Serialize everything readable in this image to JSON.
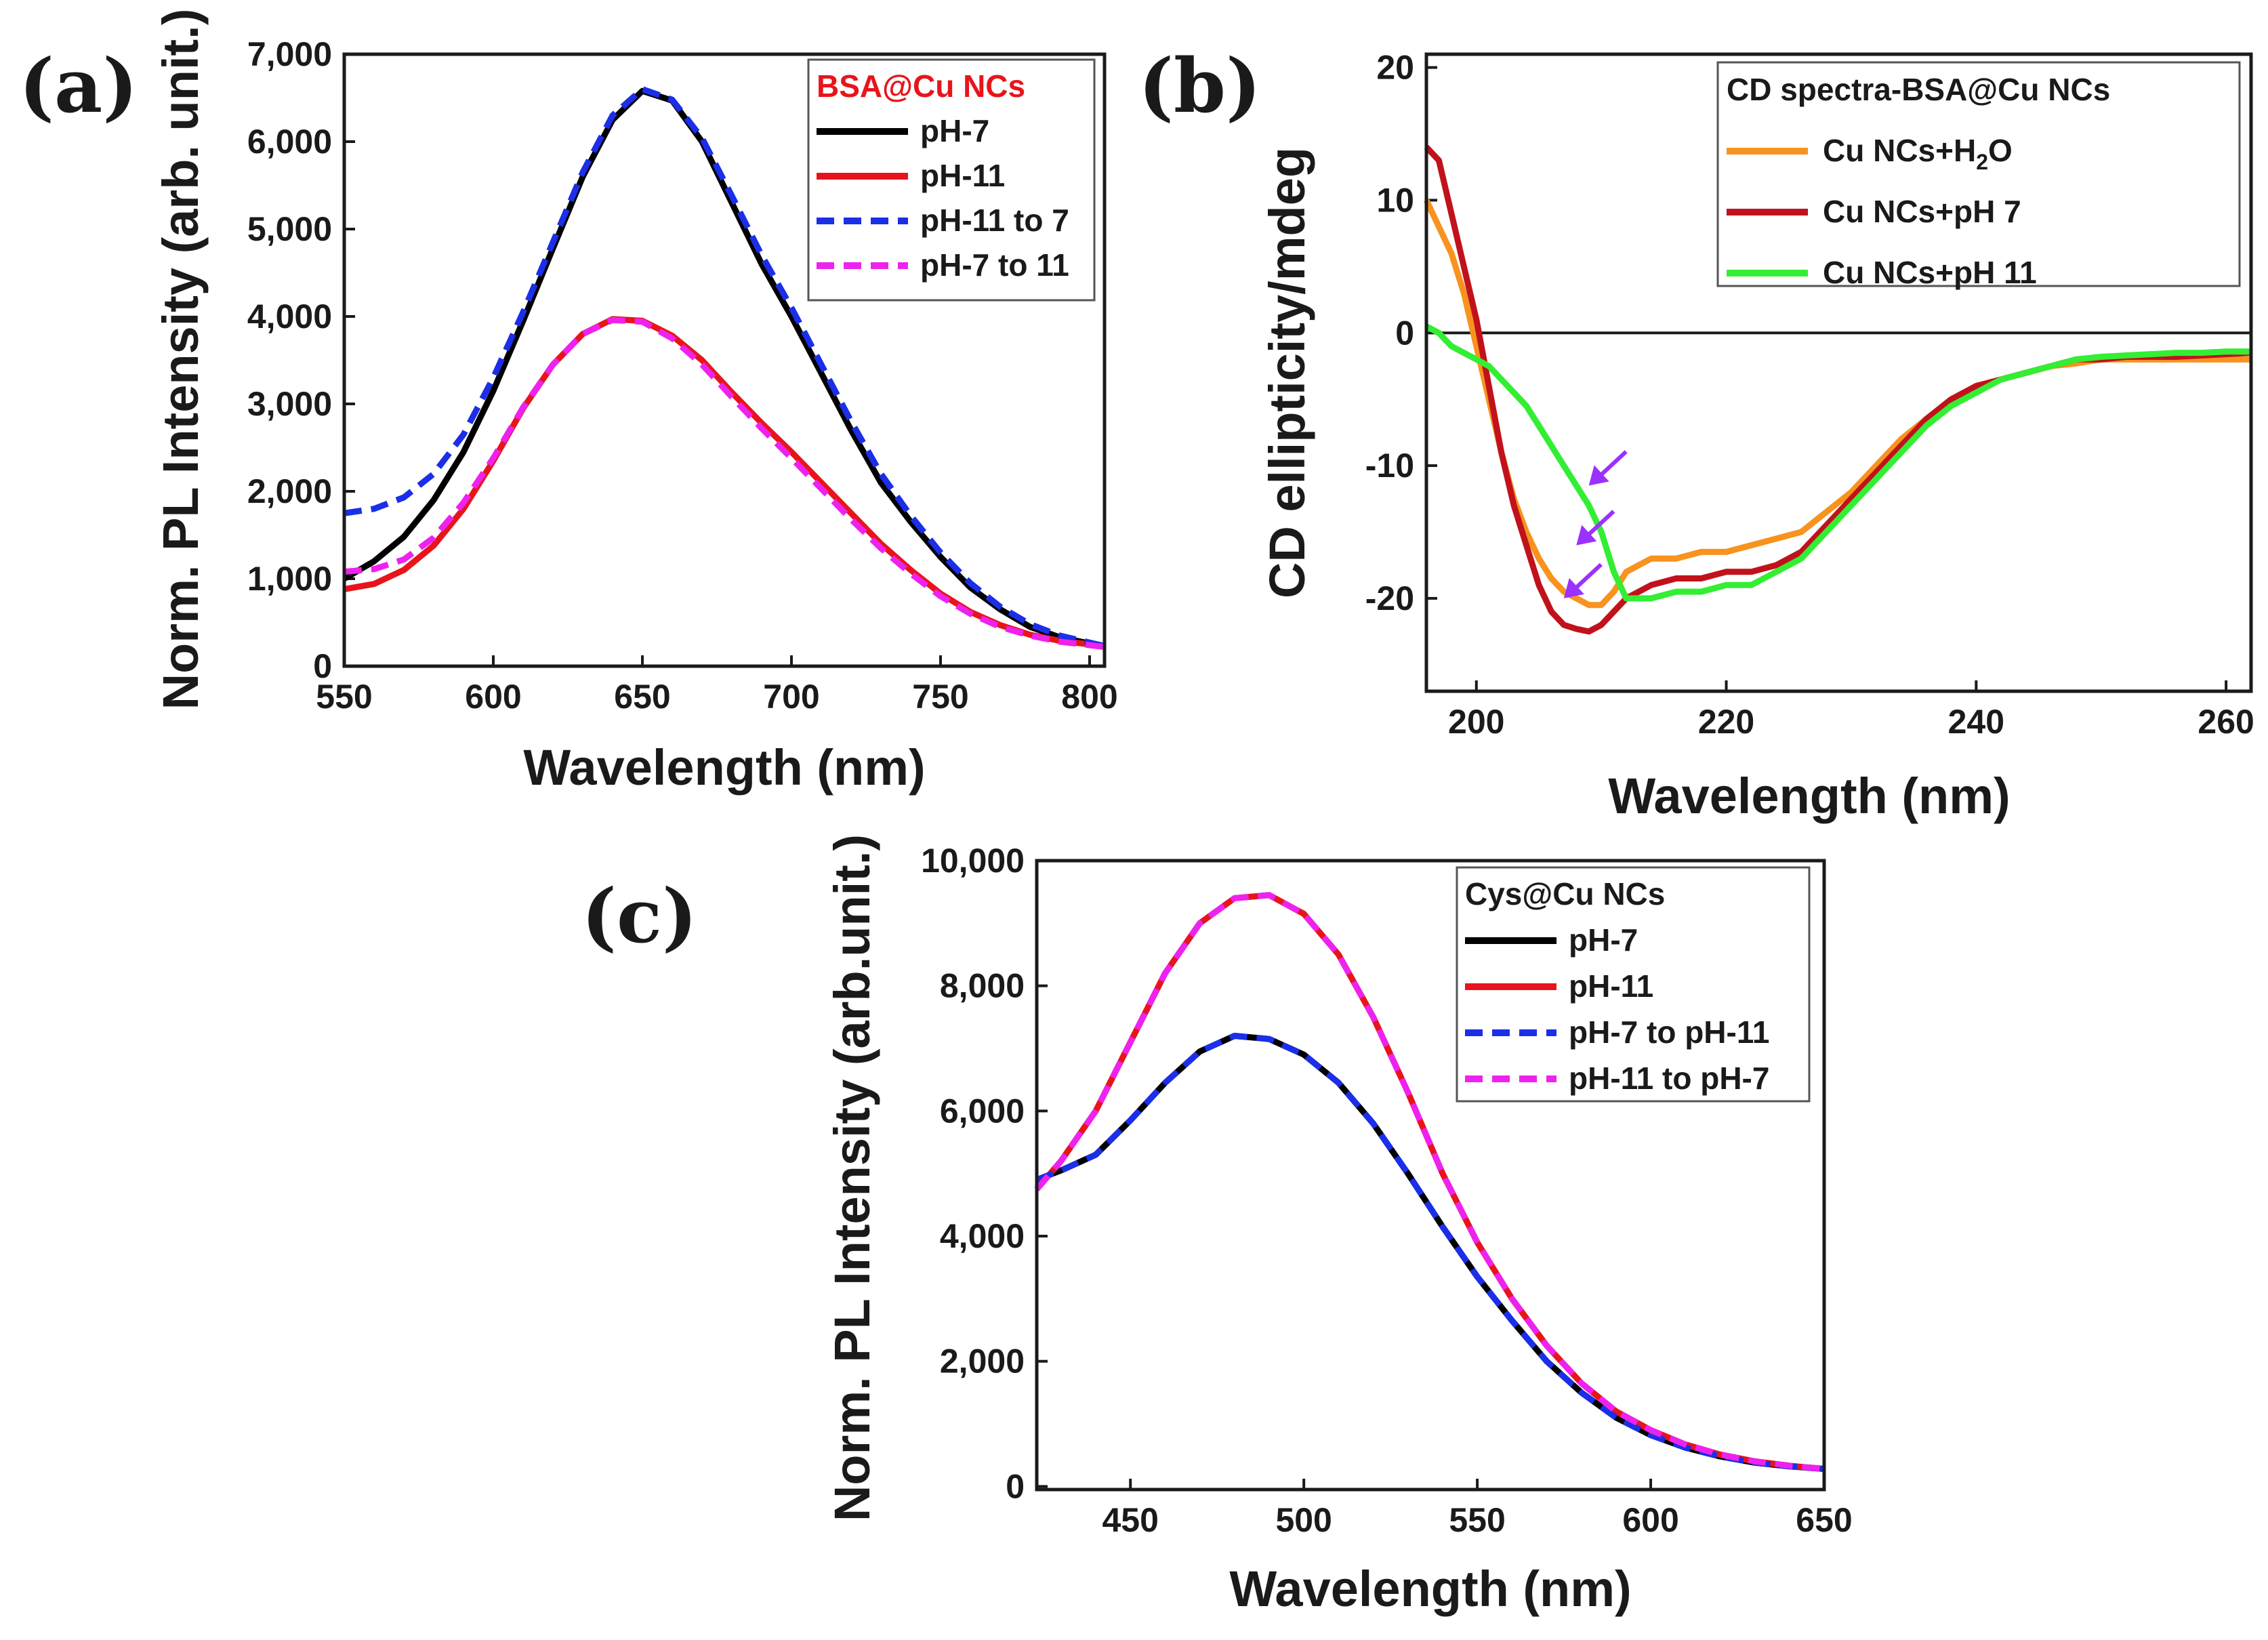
{
  "chart_data": [
    {
      "id": "a",
      "panel_label": "(a)",
      "type": "line",
      "xlabel": "Wavelength (nm)",
      "ylabel": "Norm. PL Intensity (arb. unit.)",
      "xlim": [
        550,
        805
      ],
      "ylim": [
        0,
        7000
      ],
      "xticks": [
        550,
        600,
        650,
        700,
        750,
        800
      ],
      "xtick_labels": [
        "550",
        "600",
        "650",
        "700",
        "750",
        "800"
      ],
      "yticks": [
        0,
        1000,
        2000,
        3000,
        4000,
        5000,
        6000,
        7000
      ],
      "ytick_labels": [
        "0",
        "1,000",
        "2,000",
        "3,000",
        "4,000",
        "5,000",
        "6,000",
        "7,000"
      ],
      "legend_title": "BSA@Cu NCs",
      "legend_title_color": "#e8141c",
      "legend_position": "top-right",
      "x": [
        550,
        560,
        570,
        580,
        590,
        600,
        610,
        620,
        630,
        640,
        650,
        660,
        670,
        680,
        690,
        700,
        710,
        720,
        730,
        740,
        750,
        760,
        770,
        780,
        790,
        800,
        805
      ],
      "series": [
        {
          "name": "pH-7",
          "color": "#000000",
          "dash": "solid",
          "values": [
            1000,
            1200,
            1480,
            1900,
            2450,
            3150,
            3950,
            4780,
            5600,
            6250,
            6580,
            6470,
            6000,
            5300,
            4600,
            4000,
            3350,
            2700,
            2100,
            1650,
            1250,
            900,
            650,
            450,
            330,
            260,
            230
          ]
        },
        {
          "name": "pH-11",
          "color": "#e8141c",
          "dash": "solid",
          "values": [
            880,
            940,
            1100,
            1380,
            1800,
            2350,
            2950,
            3450,
            3800,
            3970,
            3950,
            3780,
            3500,
            3130,
            2780,
            2450,
            2100,
            1750,
            1400,
            1100,
            830,
            620,
            470,
            360,
            290,
            250,
            230
          ]
        },
        {
          "name": "pH-11 to 7",
          "color": "#1b2ee8",
          "dash": "dashed",
          "values": [
            1750,
            1800,
            1930,
            2200,
            2650,
            3300,
            4050,
            4850,
            5650,
            6300,
            6600,
            6480,
            6040,
            5380,
            4700,
            4100,
            3450,
            2800,
            2200,
            1720,
            1300,
            950,
            680,
            480,
            350,
            270,
            230
          ]
        },
        {
          "name": "pH-7 to 11",
          "color": "#ee22ee",
          "dash": "dashed",
          "values": [
            1080,
            1110,
            1220,
            1470,
            1870,
            2380,
            2960,
            3450,
            3800,
            3960,
            3940,
            3750,
            3450,
            3080,
            2720,
            2380,
            2030,
            1680,
            1350,
            1060,
            800,
            600,
            450,
            350,
            280,
            240,
            220
          ]
        }
      ]
    },
    {
      "id": "b",
      "panel_label": "(b)",
      "type": "line",
      "xlabel": "Wavelength (nm)",
      "ylabel": "CD ellipticity/mdeg",
      "xlim": [
        196,
        262
      ],
      "ylim": [
        -27,
        21
      ],
      "xticks": [
        200,
        220,
        240,
        260
      ],
      "xtick_labels": [
        "200",
        "220",
        "240",
        "260"
      ],
      "yticks": [
        -20,
        -10,
        0,
        10,
        20
      ],
      "ytick_labels": [
        "-20",
        "-10",
        "0",
        "10",
        "20"
      ],
      "legend_title": "CD spectra-BSA@Cu NCs",
      "legend_title_color": "#1a1a1a",
      "legend_position": "top-right",
      "legend_entries": [
        {
          "prefix": "Cu NCs+H",
          "sub": "2",
          "suffix": "O"
        },
        {
          "prefix": "Cu NCs+pH 7",
          "sub": "",
          "suffix": ""
        },
        {
          "prefix": "Cu NCs+pH 11",
          "sub": "",
          "suffix": ""
        }
      ],
      "zero_line": true,
      "annotation": "three purple arrows pointing at the 208 nm minimum",
      "x": [
        196,
        197,
        198,
        199,
        200,
        201,
        202,
        203,
        204,
        205,
        206,
        207,
        208,
        209,
        210,
        211,
        212,
        214,
        216,
        218,
        220,
        222,
        224,
        226,
        228,
        230,
        232,
        234,
        236,
        238,
        240,
        242,
        244,
        246,
        248,
        250,
        252,
        254,
        256,
        258,
        260,
        262
      ],
      "series": [
        {
          "name": "Cu NCs+H2O",
          "color": "#f7931e",
          "dash": "solid",
          "values": [
            10,
            8,
            6,
            3,
            -1,
            -5,
            -9,
            -12.5,
            -15,
            -17,
            -18.5,
            -19.5,
            -20,
            -20.5,
            -20.5,
            -19.5,
            -18,
            -17,
            -17,
            -16.5,
            -16.5,
            -16,
            -15.5,
            -15,
            -13.5,
            -12,
            -10,
            -8,
            -6.5,
            -5,
            -4,
            -3.5,
            -3,
            -2.5,
            -2.3,
            -2,
            -2,
            -2,
            -2,
            -2,
            -2,
            -2
          ]
        },
        {
          "name": "Cu NCs+pH 7",
          "color": "#c1121c",
          "dash": "solid",
          "values": [
            14,
            13,
            9,
            5,
            1,
            -4,
            -9,
            -13,
            -16,
            -19,
            -21,
            -22,
            -22.3,
            -22.5,
            -22,
            -21,
            -20,
            -19,
            -18.5,
            -18.5,
            -18,
            -18,
            -17.5,
            -16.5,
            -14.5,
            -12.5,
            -10.5,
            -8.5,
            -6.5,
            -5,
            -4,
            -3.5,
            -3,
            -2.5,
            -2,
            -2,
            -1.8,
            -1.8,
            -1.8,
            -1.7,
            -1.6,
            -1.5
          ]
        },
        {
          "name": "Cu NCs+pH 11",
          "color": "#33ee33",
          "dash": "solid",
          "values": [
            0.5,
            0,
            -1,
            -1.5,
            -2,
            -2.5,
            -3.5,
            -4.5,
            -5.5,
            -7,
            -8.5,
            -10,
            -11.5,
            -13,
            -15,
            -18,
            -20,
            -20,
            -19.5,
            -19.5,
            -19,
            -19,
            -18,
            -17,
            -15,
            -13,
            -11,
            -9,
            -7,
            -5.5,
            -4.5,
            -3.5,
            -3,
            -2.5,
            -2,
            -1.8,
            -1.7,
            -1.6,
            -1.5,
            -1.5,
            -1.4,
            -1.4
          ]
        }
      ]
    },
    {
      "id": "c",
      "panel_label": "(c)",
      "type": "line",
      "xlabel": "Wavelength (nm)",
      "ylabel": "Norm. PL Intensity (arb.unit.)",
      "xlim": [
        423,
        650
      ],
      "ylim": [
        -50,
        10000
      ],
      "xticks": [
        450,
        500,
        550,
        600,
        650
      ],
      "xtick_labels": [
        "450",
        "500",
        "550",
        "600",
        "650"
      ],
      "yticks": [
        0,
        2000,
        4000,
        6000,
        8000,
        10000
      ],
      "ytick_labels": [
        "0",
        "2,000",
        "4,000",
        "6,000",
        "8,000",
        "10,000"
      ],
      "legend_title": "Cys@Cu NCs",
      "legend_title_color": "#1a1a1a",
      "legend_position": "top-right",
      "x": [
        423,
        430,
        440,
        450,
        460,
        470,
        480,
        490,
        500,
        510,
        520,
        530,
        540,
        550,
        560,
        570,
        580,
        590,
        600,
        610,
        620,
        630,
        640,
        650
      ],
      "series": [
        {
          "name": "pH-7",
          "color": "#000000",
          "dash": "solid",
          "values": [
            4900,
            5050,
            5300,
            5850,
            6450,
            6950,
            7200,
            7150,
            6900,
            6450,
            5800,
            5000,
            4150,
            3350,
            2650,
            2000,
            1500,
            1100,
            820,
            620,
            480,
            380,
            320,
            280
          ]
        },
        {
          "name": "pH-11",
          "color": "#e8141c",
          "dash": "solid",
          "values": [
            4750,
            5200,
            6000,
            7100,
            8200,
            9000,
            9400,
            9450,
            9150,
            8500,
            7500,
            6300,
            5000,
            3900,
            3000,
            2250,
            1650,
            1200,
            900,
            670,
            510,
            400,
            330,
            280
          ]
        },
        {
          "name": "pH-7 to pH-11",
          "color": "#1b2ee8",
          "dash": "dashed",
          "values": [
            4900,
            5050,
            5300,
            5850,
            6450,
            6950,
            7200,
            7150,
            6900,
            6450,
            5800,
            5000,
            4150,
            3350,
            2650,
            2000,
            1500,
            1100,
            820,
            620,
            480,
            380,
            320,
            280
          ]
        },
        {
          "name": "pH-11 to pH-7",
          "color": "#ee22ee",
          "dash": "dashed",
          "values": [
            4750,
            5200,
            6000,
            7100,
            8200,
            9000,
            9400,
            9450,
            9150,
            8500,
            7500,
            6300,
            5000,
            3900,
            3000,
            2250,
            1650,
            1200,
            900,
            670,
            510,
            400,
            330,
            280
          ]
        }
      ]
    }
  ]
}
